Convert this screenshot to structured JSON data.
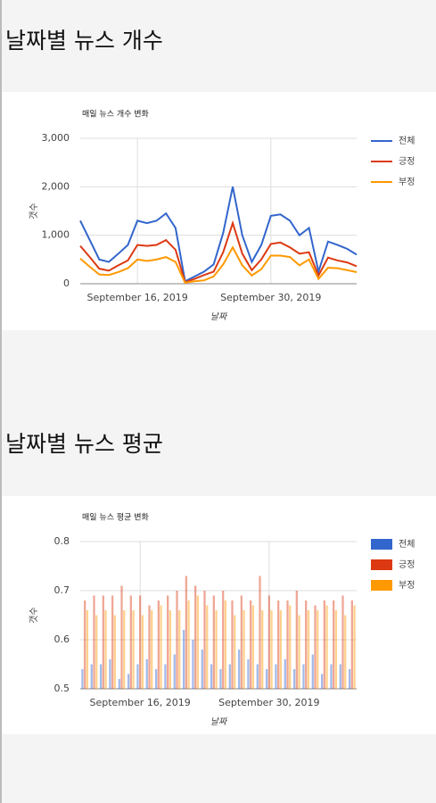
{
  "headings": [
    "날짜별 뉴스 개수",
    "날짜별 뉴스 평균"
  ],
  "chart_data": [
    {
      "type": "line",
      "title": "매일 뉴스 개수 변화",
      "x_label": "날짜",
      "y_label": "갯수",
      "x": [
        "2019-09-10",
        "2019-09-11",
        "2019-09-12",
        "2019-09-13",
        "2019-09-14",
        "2019-09-15",
        "2019-09-16",
        "2019-09-17",
        "2019-09-18",
        "2019-09-19",
        "2019-09-20",
        "2019-09-21",
        "2019-09-22",
        "2019-09-23",
        "2019-09-24",
        "2019-09-25",
        "2019-09-26",
        "2019-09-27",
        "2019-09-28",
        "2019-09-29",
        "2019-09-30",
        "2019-10-01",
        "2019-10-02",
        "2019-10-03",
        "2019-10-04",
        "2019-10-05",
        "2019-10-06",
        "2019-10-07",
        "2019-10-08",
        "2019-10-09"
      ],
      "series": [
        {
          "name": "전체",
          "color": "#3366cc",
          "values": [
            1300,
            900,
            500,
            450,
            620,
            800,
            1300,
            1250,
            1300,
            1450,
            1150,
            50,
            150,
            250,
            400,
            1050,
            2000,
            1000,
            450,
            800,
            1400,
            1430,
            1300,
            1000,
            1150,
            250,
            870,
            800,
            720,
            600
          ]
        },
        {
          "name": "긍정",
          "color": "#dc3912",
          "values": [
            780,
            550,
            310,
            270,
            380,
            480,
            800,
            780,
            800,
            900,
            700,
            30,
            100,
            180,
            250,
            650,
            1250,
            620,
            280,
            500,
            820,
            850,
            750,
            620,
            650,
            170,
            540,
            480,
            440,
            360
          ]
        },
        {
          "name": "부정",
          "color": "#ff9900",
          "values": [
            520,
            350,
            190,
            180,
            240,
            320,
            500,
            470,
            500,
            550,
            450,
            20,
            50,
            70,
            150,
            400,
            750,
            380,
            170,
            300,
            580,
            580,
            550,
            380,
            500,
            100,
            330,
            320,
            280,
            240
          ]
        }
      ],
      "xlim": [
        "2019-09-10",
        "2019-10-09"
      ],
      "xticks": [
        {
          "value": "2019-09-16",
          "label": "September 16, 2019"
        },
        {
          "value": "2019-09-30",
          "label": "September 30, 2019"
        }
      ],
      "ylim": [
        0,
        3000
      ],
      "yticks": [
        0,
        {
          "value": 1000,
          "label": "1,000"
        },
        {
          "value": 2000,
          "label": "2,000"
        },
        {
          "value": 3000,
          "label": "3,000"
        }
      ],
      "grid": true,
      "legend": "right"
    },
    {
      "type": "bar",
      "title": "매일 뉴스 평균 변화",
      "x_label": "날짜",
      "y_label": "갯수",
      "x": [
        "2019-09-10",
        "2019-09-11",
        "2019-09-12",
        "2019-09-13",
        "2019-09-14",
        "2019-09-15",
        "2019-09-16",
        "2019-09-17",
        "2019-09-18",
        "2019-09-19",
        "2019-09-20",
        "2019-09-21",
        "2019-09-22",
        "2019-09-23",
        "2019-09-24",
        "2019-09-25",
        "2019-09-26",
        "2019-09-27",
        "2019-09-28",
        "2019-09-29",
        "2019-09-30",
        "2019-10-01",
        "2019-10-02",
        "2019-10-03",
        "2019-10-04",
        "2019-10-05",
        "2019-10-06",
        "2019-10-07",
        "2019-10-08",
        "2019-10-09"
      ],
      "series": [
        {
          "name": "전체",
          "color": "#3366cc",
          "values": [
            0.54,
            0.55,
            0.55,
            0.56,
            0.52,
            0.53,
            0.55,
            0.56,
            0.54,
            0.55,
            0.57,
            0.62,
            0.6,
            0.58,
            0.55,
            0.54,
            0.55,
            0.58,
            0.56,
            0.55,
            0.54,
            0.55,
            0.56,
            0.54,
            0.55,
            0.57,
            0.53,
            0.55,
            0.55,
            0.54
          ]
        },
        {
          "name": "긍정",
          "color": "#dc3912",
          "values": [
            0.68,
            0.69,
            0.69,
            0.69,
            0.71,
            0.69,
            0.69,
            0.67,
            0.68,
            0.69,
            0.7,
            0.73,
            0.71,
            0.7,
            0.69,
            0.7,
            0.68,
            0.69,
            0.68,
            0.73,
            0.69,
            0.68,
            0.68,
            0.7,
            0.68,
            0.67,
            0.68,
            0.68,
            0.69,
            0.68
          ]
        },
        {
          "name": "부정",
          "color": "#ff9900",
          "values": [
            0.66,
            0.65,
            0.66,
            0.65,
            0.66,
            0.66,
            0.65,
            0.66,
            0.67,
            0.66,
            0.66,
            0.68,
            0.69,
            0.67,
            0.66,
            0.68,
            0.65,
            0.66,
            0.67,
            0.66,
            0.66,
            0.66,
            0.67,
            0.65,
            0.66,
            0.66,
            0.67,
            0.66,
            0.65,
            0.67
          ]
        }
      ],
      "xlim": [
        "2019-09-10",
        "2019-10-09"
      ],
      "xticks": [
        {
          "value": "2019-09-16",
          "label": "September 16, 2019"
        },
        {
          "value": "2019-09-30",
          "label": "September 30, 2019"
        }
      ],
      "ylim": [
        0.5,
        0.8
      ],
      "yticks": [
        0.5,
        0.6,
        0.7,
        0.8
      ],
      "grid": true,
      "legend": "right"
    }
  ]
}
